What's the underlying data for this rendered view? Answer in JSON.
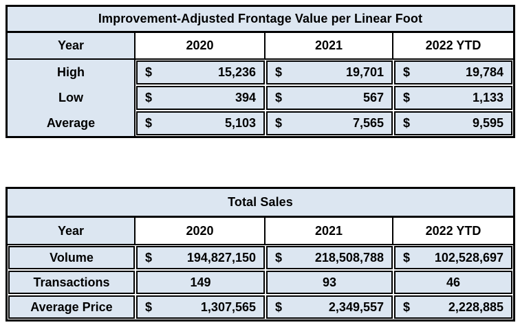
{
  "colors": {
    "cell_fill": "#dce6f1",
    "year_header_fill": "#ffffff",
    "border": "#000000",
    "text": "#000000"
  },
  "tables": [
    {
      "title": "Improvement-Adjusted Frontage Value per Linear Foot",
      "columns": [
        "Year",
        "2020",
        "2021",
        "2022 YTD"
      ],
      "rows": [
        {
          "label": "High",
          "cells": [
            {
              "prefix": "$",
              "value": "15,236"
            },
            {
              "prefix": "$",
              "value": "19,701"
            },
            {
              "prefix": "$",
              "value": "19,784"
            }
          ]
        },
        {
          "label": "Low",
          "cells": [
            {
              "prefix": "$",
              "value": "394"
            },
            {
              "prefix": "$",
              "value": "567"
            },
            {
              "prefix": "$",
              "value": "1,133"
            }
          ]
        },
        {
          "label": "Average",
          "cells": [
            {
              "prefix": "$",
              "value": "5,103"
            },
            {
              "prefix": "$",
              "value": "7,565"
            },
            {
              "prefix": "$",
              "value": "9,595"
            }
          ]
        }
      ]
    },
    {
      "title": "Total Sales",
      "columns": [
        "Year",
        "2020",
        "2021",
        "2022 YTD"
      ],
      "rows": [
        {
          "label": "Volume",
          "cells": [
            {
              "prefix": "$",
              "value": "194,827,150"
            },
            {
              "prefix": "$",
              "value": "218,508,788"
            },
            {
              "prefix": "$",
              "value": "102,528,697"
            }
          ]
        },
        {
          "label": "Transactions",
          "cells": [
            {
              "prefix": "",
              "value": "149"
            },
            {
              "prefix": "",
              "value": "93"
            },
            {
              "prefix": "",
              "value": "46"
            }
          ]
        },
        {
          "label": "Average Price",
          "cells": [
            {
              "prefix": "$",
              "value": "1,307,565"
            },
            {
              "prefix": "$",
              "value": "2,349,557"
            },
            {
              "prefix": "$",
              "value": "2,228,885"
            }
          ]
        }
      ]
    }
  ]
}
